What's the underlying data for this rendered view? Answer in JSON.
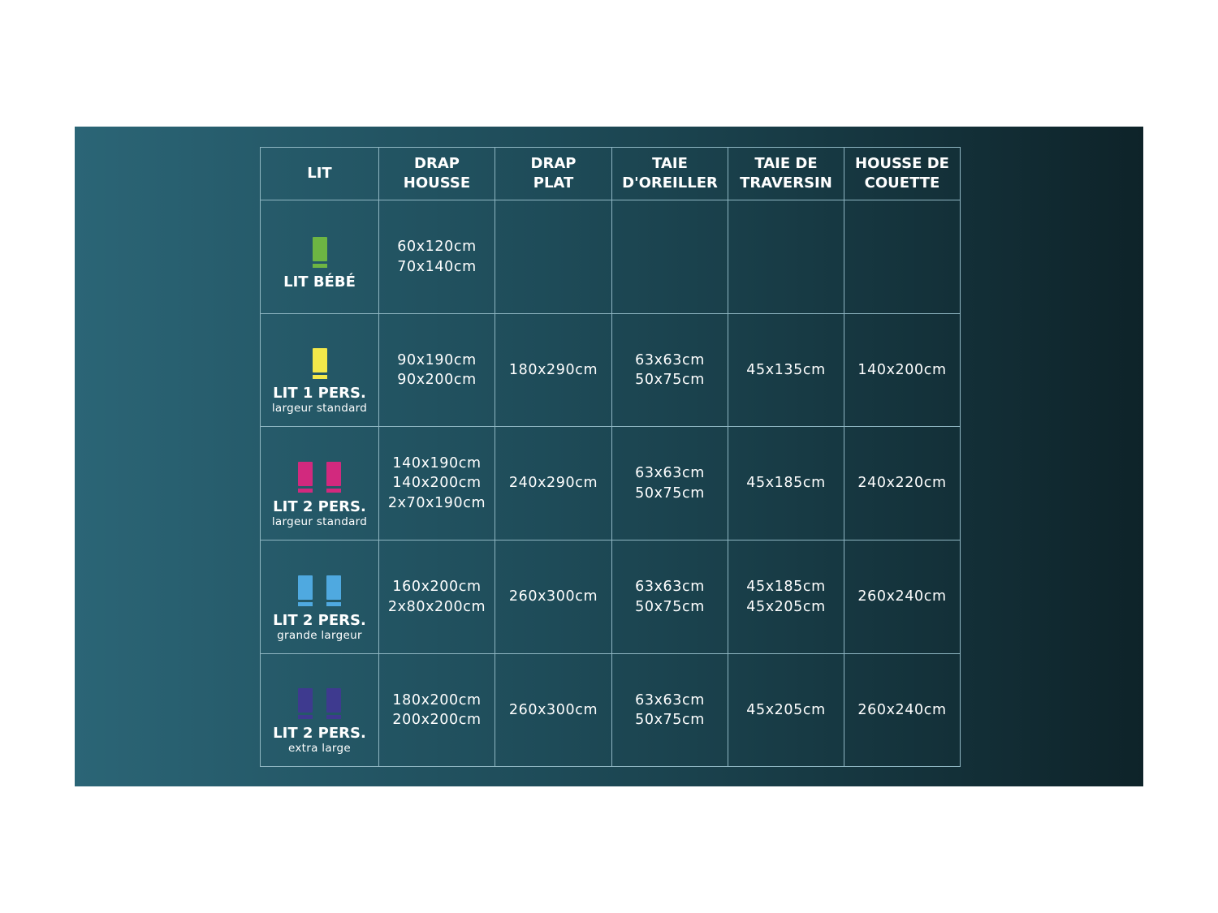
{
  "table": {
    "headers": [
      [
        "LIT"
      ],
      [
        "DRAP",
        "HOUSSE"
      ],
      [
        "DRAP",
        "PLAT"
      ],
      [
        "TAIE",
        "D'OREILLER"
      ],
      [
        "TAIE DE",
        "TRAVERSIN"
      ],
      [
        "HOUSSE DE",
        "COUETTE"
      ]
    ],
    "rows": [
      {
        "bed": {
          "name": "LIT BÉBÉ",
          "color": "#6db543",
          "beds": 1
        },
        "cells": [
          [
            "60x120cm",
            "70x140cm"
          ],
          [],
          [],
          [],
          []
        ]
      },
      {
        "bed": {
          "name": "LIT 1 PERS.",
          "subtitle": "largeur standard",
          "color": "#f3e84a",
          "beds": 1
        },
        "cells": [
          [
            "90x190cm",
            "90x200cm"
          ],
          [
            "180x290cm"
          ],
          [
            "63x63cm",
            "50x75cm"
          ],
          [
            "45x135cm"
          ],
          [
            "140x200cm"
          ]
        ]
      },
      {
        "bed": {
          "name": "LIT 2 PERS.",
          "subtitle": "largeur standard",
          "color": "#d2297e",
          "beds": 2
        },
        "cells": [
          [
            "140x190cm",
            "140x200cm",
            "2x70x190cm"
          ],
          [
            "240x290cm"
          ],
          [
            "63x63cm",
            "50x75cm"
          ],
          [
            "45x185cm"
          ],
          [
            "240x220cm"
          ]
        ]
      },
      {
        "bed": {
          "name": "LIT 2 PERS.",
          "subtitle": "grande largeur",
          "color": "#4fa9e0",
          "beds": 2
        },
        "cells": [
          [
            "160x200cm",
            "2x80x200cm"
          ],
          [
            "260x300cm"
          ],
          [
            "63x63cm",
            "50x75cm"
          ],
          [
            "45x185cm",
            "45x205cm"
          ],
          [
            "260x240cm"
          ]
        ]
      },
      {
        "bed": {
          "name": "LIT 2 PERS.",
          "subtitle": "extra large",
          "color": "#3e3a8f",
          "beds": 2
        },
        "cells": [
          [
            "180x200cm",
            "200x200cm"
          ],
          [
            "260x300cm"
          ],
          [
            "63x63cm",
            "50x75cm"
          ],
          [
            "45x205cm"
          ],
          [
            "260x240cm"
          ]
        ]
      }
    ]
  }
}
